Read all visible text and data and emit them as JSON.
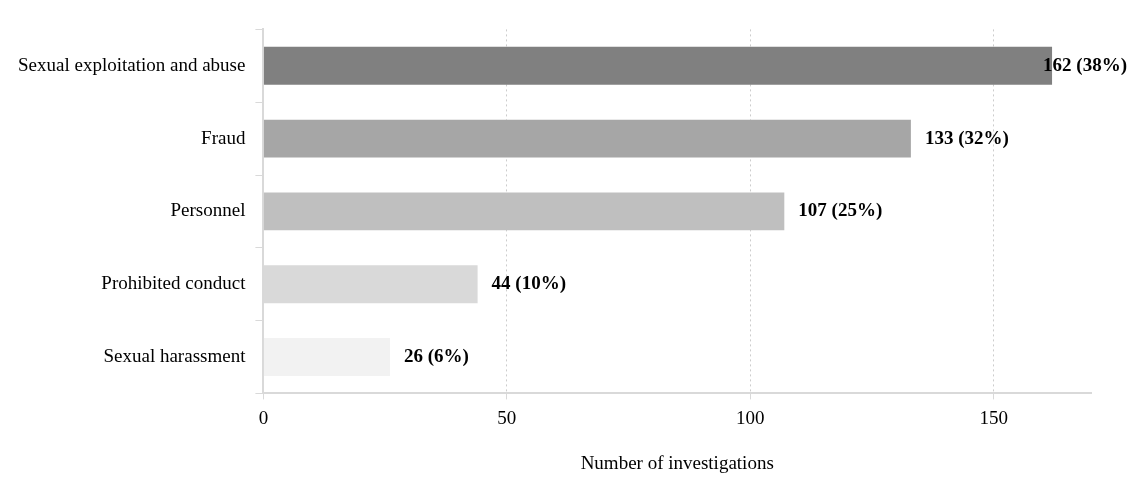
{
  "chart_data": {
    "type": "bar",
    "orientation": "horizontal",
    "xlabel": "Number of investigations",
    "categories": [
      "Sexual exploitation and abuse",
      "Fraud",
      "Personnel",
      "Prohibited conduct",
      "Sexual harassment"
    ],
    "values": [
      162,
      133,
      107,
      44,
      26
    ],
    "colors": [
      "#808080",
      "#a6a6a6",
      "#bfbfbf",
      "#d9d9d9",
      "#f2f2f2"
    ],
    "value_labels": [
      "162 (38%)",
      "133 (32%)",
      "107 (25%)",
      "44 (10%)",
      "26 (6%)"
    ],
    "xlim": [
      0,
      170
    ],
    "xticks": [
      0,
      50,
      100,
      150
    ],
    "grid": "x",
    "legend": false
  }
}
